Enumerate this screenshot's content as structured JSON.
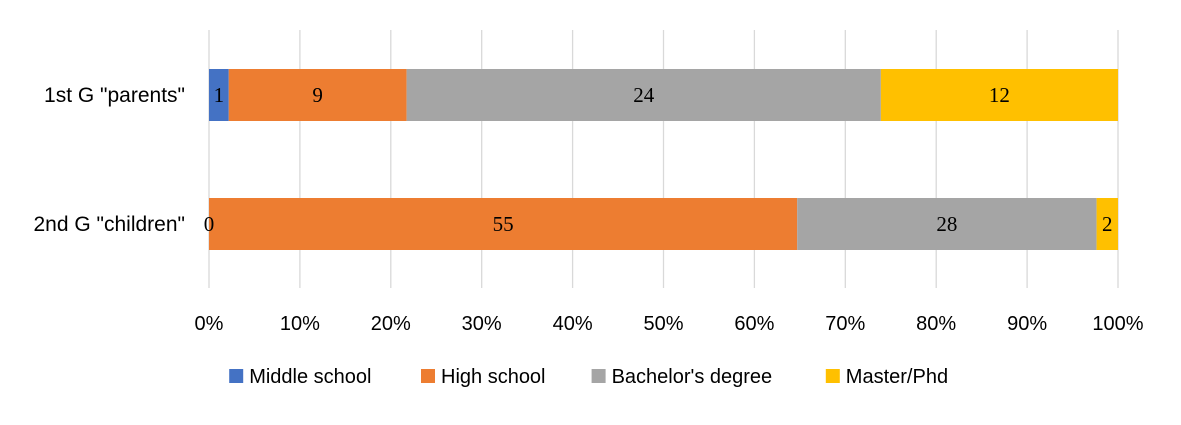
{
  "chart_data": {
    "type": "bar",
    "orientation": "horizontal",
    "stacked": "percent",
    "categories": [
      "1st G \"parents\"",
      "2nd G \"children\""
    ],
    "series": [
      {
        "name": "Middle school",
        "values": [
          1,
          0
        ],
        "color": "#4472C4"
      },
      {
        "name": "High school",
        "values": [
          9,
          55
        ],
        "color": "#ED7D31"
      },
      {
        "name": "Bachelor's degree",
        "values": [
          24,
          28
        ],
        "color": "#A5A5A5"
      },
      {
        "name": "Master/Phd",
        "values": [
          12,
          2
        ],
        "color": "#FFC000"
      }
    ],
    "xticks": [
      "0%",
      "10%",
      "20%",
      "30%",
      "40%",
      "50%",
      "60%",
      "70%",
      "80%",
      "90%",
      "100%"
    ],
    "xlim": [
      0,
      100
    ],
    "grid": true,
    "legend": "bottom",
    "title": "",
    "xlabel": "",
    "ylabel": ""
  }
}
